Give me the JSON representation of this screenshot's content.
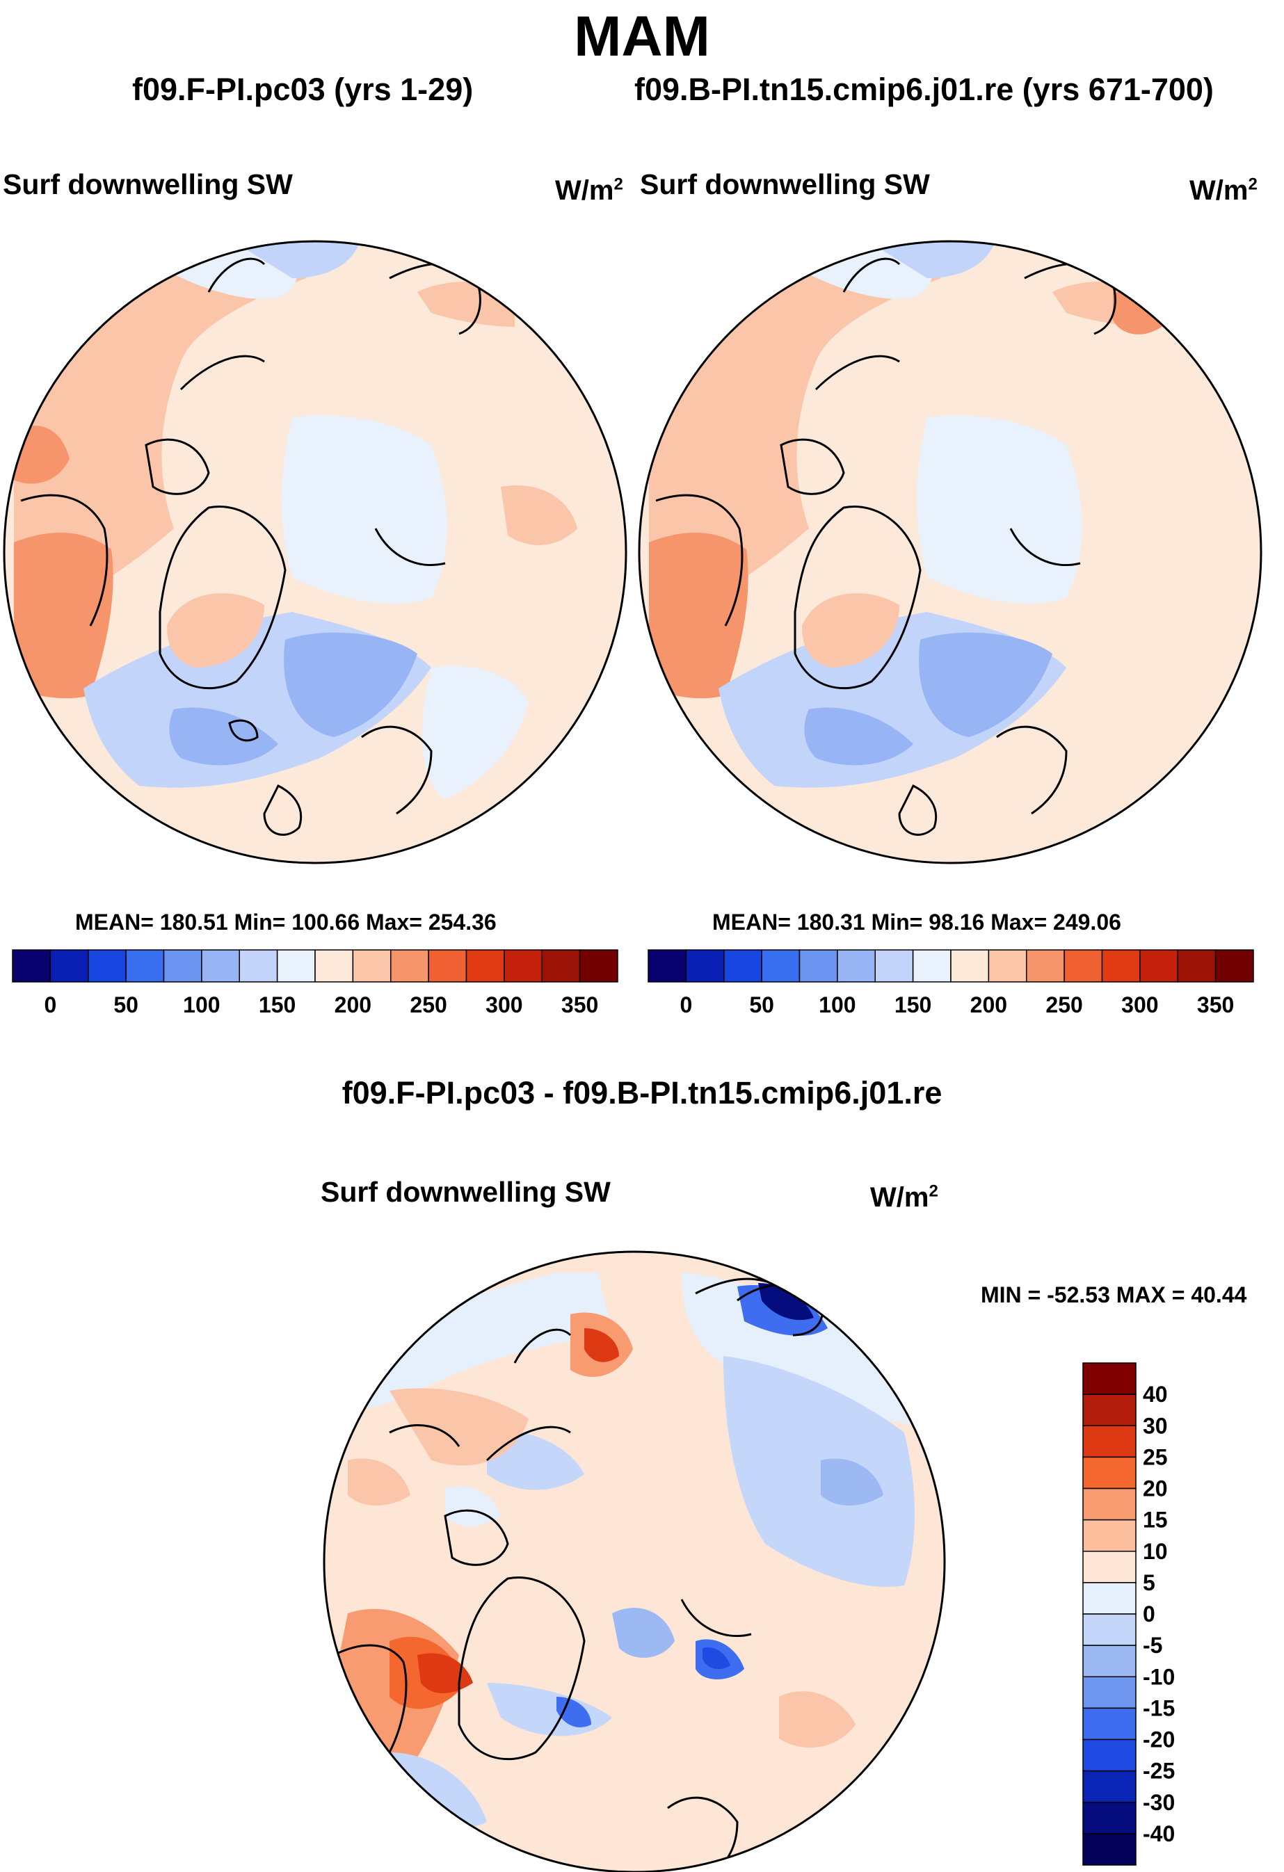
{
  "title": "MAM",
  "panels": [
    {
      "case_label": "f09.F-PI.pc03 (yrs 1-29)",
      "variable": "Surf downwelling SW",
      "units_base": "W/m",
      "units_exp": "2",
      "stats": "MEAN= 180.51  Min= 100.66  Max= 254.36"
    },
    {
      "case_label": "f09.B-PI.tn15.cmip6.j01.re (yrs 671-700)",
      "variable": "Surf downwelling SW",
      "units_base": "W/m",
      "units_exp": "2",
      "stats": "MEAN= 180.31  Min=  98.16  Max= 249.06"
    }
  ],
  "difference": {
    "title": "f09.F-PI.pc03 - f09.B-PI.tn15.cmip6.j01.re",
    "variable": "Surf downwelling SW",
    "units_base": "W/m",
    "units_exp": "2",
    "stats": "MIN = -52.53 MAX =  40.44"
  },
  "chart_data": [
    {
      "type": "heatmap",
      "projection": "north polar stereographic",
      "title": "Surf downwelling SW",
      "subtitle": "f09.F-PI.pc03 (yrs 1-29)",
      "units": "W/m2",
      "mean": 180.51,
      "min": 100.66,
      "max": 254.36,
      "colorbar": {
        "orientation": "horizontal",
        "tick_labels": [
          "0",
          "50",
          "100",
          "150",
          "200",
          "250",
          "300",
          "350"
        ],
        "colors": [
          "#08006e",
          "#0a1fb4",
          "#1846e0",
          "#3a6ef0",
          "#6a94f0",
          "#97b4f5",
          "#c2d4fa",
          "#e8f1fc",
          "#fde9da",
          "#fbc5aa",
          "#f6946c",
          "#ef6133",
          "#e03b13",
          "#c3210c",
          "#9b1207",
          "#730000"
        ]
      }
    },
    {
      "type": "heatmap",
      "projection": "north polar stereographic",
      "title": "Surf downwelling SW",
      "subtitle": "f09.B-PI.tn15.cmip6.j01.re (yrs 671-700)",
      "units": "W/m2",
      "mean": 180.31,
      "min": 98.16,
      "max": 249.06,
      "colorbar": {
        "orientation": "horizontal",
        "tick_labels": [
          "0",
          "50",
          "100",
          "150",
          "200",
          "250",
          "300",
          "350"
        ],
        "colors": [
          "#08006e",
          "#0a1fb4",
          "#1846e0",
          "#3a6ef0",
          "#6a94f0",
          "#97b4f5",
          "#c2d4fa",
          "#e8f1fc",
          "#fde9da",
          "#fbc5aa",
          "#f6946c",
          "#ef6133",
          "#e03b13",
          "#c3210c",
          "#9b1207",
          "#730000"
        ]
      }
    },
    {
      "type": "heatmap",
      "projection": "north polar stereographic",
      "title": "Surf downwelling SW",
      "subtitle": "f09.F-PI.pc03 - f09.B-PI.tn15.cmip6.j01.re",
      "units": "W/m2",
      "min": -52.53,
      "max": 40.44,
      "colorbar": {
        "orientation": "vertical",
        "tick_labels": [
          "40",
          "30",
          "25",
          "20",
          "15",
          "10",
          "5",
          "0",
          "-5",
          "-10",
          "-15",
          "-20",
          "-25",
          "-30",
          "-40"
        ],
        "colors": [
          "#800000",
          "#b11d0a",
          "#dd3a13",
          "#f4682f",
          "#f99b70",
          "#fbbf9d",
          "#fde6d6",
          "#e6f0fc",
          "#c4d6fa",
          "#9cb9f4",
          "#6e96ef",
          "#3f6df0",
          "#1f4be3",
          "#0a24b6",
          "#050c7e",
          "#03005a"
        ]
      }
    }
  ]
}
